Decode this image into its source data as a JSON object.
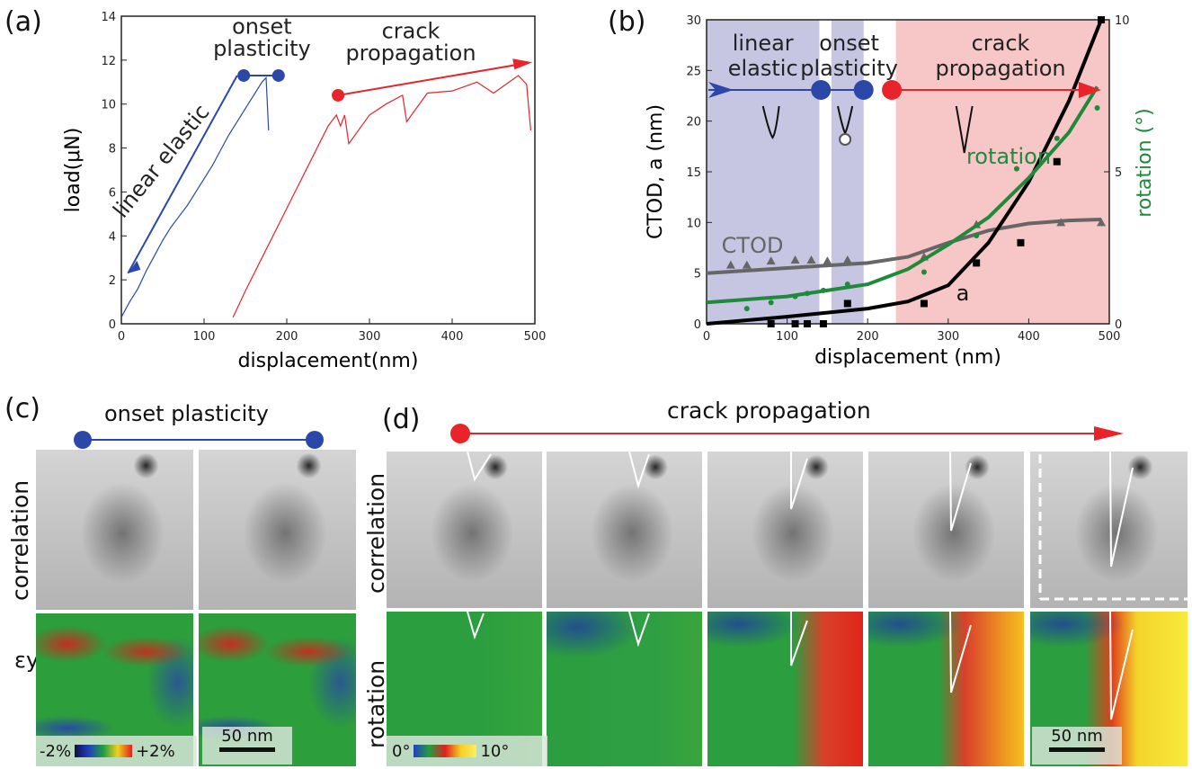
{
  "panels": {
    "a": {
      "label": "(a)"
    },
    "b": {
      "label": "(b)"
    },
    "c": {
      "label": "(c)",
      "title": "onset plasticity",
      "row1": "correlation",
      "row2": "εyy",
      "cbar_min": "-2%",
      "cbar_max": "+2%",
      "scale": "50 nm"
    },
    "d": {
      "label": "(d)",
      "title": "crack propagation",
      "row1": "correlation",
      "row2": "rotation",
      "cbar_min": "0°",
      "cbar_max": "10°",
      "scale": "50 nm"
    }
  },
  "colors": {
    "blue": "#2b48a8",
    "red": "#e8232a",
    "green": "#1f8a3c",
    "gray": "#666666",
    "blue_band": "#c7c6e2",
    "red_band": "#f7c6c6"
  },
  "chart_data": [
    {
      "type": "line",
      "title": "",
      "xlabel": "displacement(nm)",
      "ylabel": "load(μN)",
      "xlim": [
        0,
        500
      ],
      "ylim": [
        0,
        14
      ],
      "xticks": [
        0,
        100,
        200,
        300,
        400,
        500
      ],
      "yticks": [
        0,
        2,
        4,
        6,
        8,
        10,
        12,
        14
      ],
      "series": [
        {
          "name": "",
          "color": "#2b48a8",
          "x": [
            0,
            10,
            20,
            30,
            40,
            50,
            60,
            70,
            80,
            90,
            100,
            110,
            120,
            130,
            140,
            150,
            160,
            170,
            175,
            178
          ],
          "y": [
            0.3,
            1.0,
            1.6,
            2.4,
            3.1,
            3.8,
            4.4,
            4.9,
            5.4,
            6.0,
            6.6,
            7.2,
            7.9,
            8.6,
            9.2,
            9.8,
            10.4,
            11.0,
            11.2,
            8.8
          ]
        },
        {
          "name": "",
          "color": "#e8232a",
          "x": [
            135,
            150,
            170,
            190,
            210,
            230,
            250,
            260,
            265,
            270,
            275,
            300,
            320,
            340,
            345,
            370,
            400,
            430,
            450,
            480,
            490,
            495
          ],
          "y": [
            0.3,
            1.5,
            3.0,
            4.5,
            6.0,
            7.5,
            9.0,
            9.5,
            9.0,
            9.5,
            8.2,
            9.5,
            10.0,
            10.4,
            9.2,
            10.5,
            10.6,
            11.0,
            10.5,
            11.3,
            10.9,
            8.8
          ]
        }
      ],
      "annotations": [
        "linear elastic",
        "onset",
        "plasticity",
        "crack",
        "propagation"
      ]
    },
    {
      "type": "line",
      "title": "",
      "xlabel": "displacement (nm)",
      "ylabel": "CTOD, a (nm)",
      "y2label": "rotation (°)",
      "xlim": [
        0,
        500
      ],
      "ylim": [
        0,
        30
      ],
      "y2lim": [
        0,
        10
      ],
      "xticks": [
        0,
        100,
        200,
        300,
        400,
        500
      ],
      "yticks": [
        0,
        5,
        10,
        15,
        20,
        25,
        30
      ],
      "y2ticks": [
        0,
        5,
        10
      ],
      "regions": [
        {
          "label": "linear elastic",
          "x": [
            0,
            140
          ],
          "color": "#c7c6e2"
        },
        {
          "label": "onset plasticity",
          "x": [
            155,
            195
          ],
          "color": "#c7c6e2"
        },
        {
          "label": "crack propagation",
          "x": [
            235,
            500
          ],
          "color": "#f7c6c6"
        }
      ],
      "series": [
        {
          "name": "CTOD",
          "color": "#666666",
          "marker": "triangle",
          "x": [
            30,
            50,
            80,
            110,
            130,
            150,
            175,
            270,
            335,
            440,
            490
          ],
          "y": [
            5.8,
            5.8,
            6.2,
            6.3,
            6.3,
            6.2,
            6.3,
            6.6,
            9.8,
            10.0,
            10.0
          ],
          "fit_x": [
            0,
            100,
            200,
            250,
            300,
            350,
            400,
            450,
            490
          ],
          "fit_y": [
            5.0,
            5.5,
            6.0,
            6.6,
            8.0,
            9.2,
            9.9,
            10.2,
            10.3
          ]
        },
        {
          "name": "a",
          "color": "#000000",
          "marker": "square",
          "x": [
            80,
            110,
            125,
            145,
            175,
            270,
            335,
            390,
            435,
            490
          ],
          "y": [
            0,
            0,
            0,
            0,
            2.0,
            2.0,
            6.0,
            8.0,
            16.0,
            30.0
          ],
          "fit_x": [
            0,
            100,
            200,
            250,
            300,
            350,
            400,
            450,
            490
          ],
          "fit_y": [
            0.0,
            0.7,
            1.5,
            2.2,
            3.8,
            8.0,
            14.0,
            22.0,
            30.0
          ]
        },
        {
          "name": "rotation",
          "color": "#1f8a3c",
          "marker": "circle",
          "axis": "y2",
          "x": [
            50,
            80,
            110,
            125,
            145,
            175,
            270,
            335,
            385,
            435,
            485
          ],
          "y": [
            0.5,
            0.7,
            0.9,
            1.0,
            1.1,
            1.3,
            1.7,
            2.9,
            5.1,
            6.1,
            7.1
          ],
          "fit_x": [
            0,
            100,
            200,
            250,
            300,
            350,
            400,
            450,
            485
          ],
          "fit_y": [
            0.7,
            0.9,
            1.3,
            1.8,
            2.6,
            3.5,
            4.8,
            6.3,
            7.8
          ]
        }
      ],
      "annotations": [
        "linear",
        "elastic",
        "onset",
        "plasticity",
        "crack",
        "propagation",
        "rotation",
        "CTOD",
        "a"
      ]
    }
  ]
}
